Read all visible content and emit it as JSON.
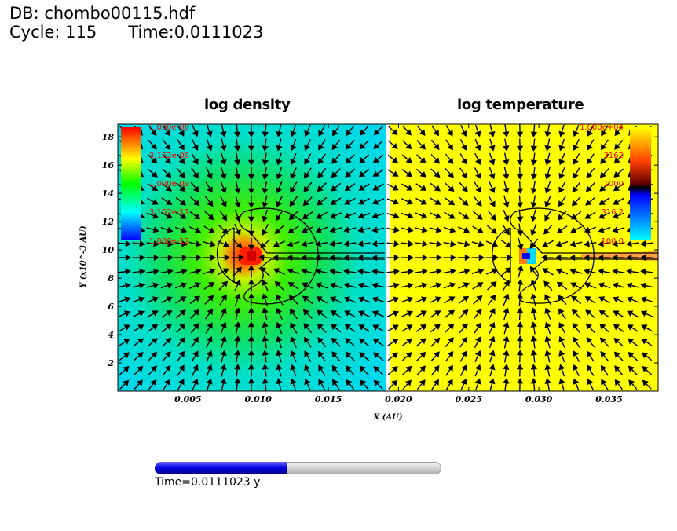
{
  "header": {
    "db_line": "DB: chombo00115.hdf",
    "cycle_line": "Cycle: 115      Time:0.0111023"
  },
  "panels": {
    "density_title": "log density",
    "temperature_title": "log temperature"
  },
  "density_colorbar": {
    "labels": [
      "1.000e-06",
      "3.162e-08",
      "1.000e-09",
      "3.162e-11",
      "1.000e-12"
    ],
    "colors": [
      "#ff0000",
      "#ffff00",
      "#00ff00",
      "#00ffff",
      "#0000ff"
    ]
  },
  "temperature_colorbar": {
    "labels": [
      "1.000e+04",
      "3162",
      "1000",
      "316.2",
      "100.0"
    ],
    "colors": [
      "#ffff00",
      "#ff0000",
      "#000000",
      "#0000ff",
      "#00ffff"
    ]
  },
  "time_slider": {
    "label": "Time=0.0111023 y",
    "fraction": 0.46
  },
  "colors": {
    "density_bg": "#00e6ee",
    "temperature_bg": "#ffff00",
    "vector": "#000000"
  },
  "chart_data": {
    "type": "heatmap",
    "xlabel": "X (AU)",
    "ylabel": "Y (x10^-3 AU)",
    "xlim": [
      0,
      0.0385
    ],
    "ylim": [
      0,
      18.9
    ],
    "x_ticks": [
      "0.005",
      "0.010",
      "0.015",
      "0.020",
      "0.025",
      "0.030",
      "0.035"
    ],
    "x_tick_values": [
      0.005,
      0.01,
      0.015,
      0.02,
      0.025,
      0.03,
      0.035
    ],
    "y_ticks": [
      "2",
      "4",
      "6",
      "8",
      "10",
      "12",
      "14",
      "16",
      "18"
    ],
    "y_tick_values": [
      2,
      4,
      6,
      8,
      10,
      12,
      14,
      16,
      18
    ],
    "fields": [
      "log density",
      "log temperature"
    ],
    "density_peak": {
      "x": 0.0095,
      "y": 9.5
    },
    "temperature_peak": {
      "x": 0.0289,
      "y": 9.5
    },
    "panel_split_x": 0.0193
  }
}
